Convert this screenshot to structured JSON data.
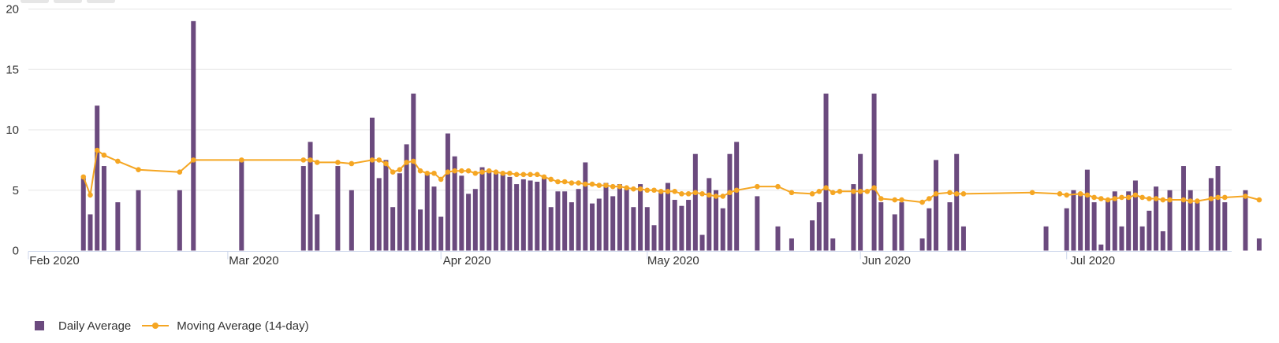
{
  "chart_data": {
    "type": "bar",
    "ylim": [
      0,
      20
    ],
    "yticks": [
      "0",
      "5",
      "10",
      "15",
      "20"
    ],
    "xticks": [
      {
        "label": "Feb 2020",
        "date": "2020-02-01"
      },
      {
        "label": "Mar 2020",
        "date": "2020-03-01"
      },
      {
        "label": "Apr 2020",
        "date": "2020-04-01"
      },
      {
        "label": "May 2020",
        "date": "2020-05-01"
      },
      {
        "label": "Jun 2020",
        "date": "2020-06-01"
      },
      {
        "label": "Jul 2020",
        "date": "2020-07-01"
      }
    ],
    "legend_position": "bottom-left",
    "grid": "horizontal",
    "series": [
      {
        "name": "Daily Average",
        "type": "bar",
        "color": "#6b4a7e",
        "points": [
          [
            "2020-02-09",
            6
          ],
          [
            "2020-02-10",
            3
          ],
          [
            "2020-02-11",
            12
          ],
          [
            "2020-02-12",
            7
          ],
          [
            "2020-02-14",
            4
          ],
          [
            "2020-02-17",
            5
          ],
          [
            "2020-02-23",
            5
          ],
          [
            "2020-02-25",
            19
          ],
          [
            "2020-03-03",
            7.5
          ],
          [
            "2020-03-12",
            7
          ],
          [
            "2020-03-13",
            9
          ],
          [
            "2020-03-14",
            3
          ],
          [
            "2020-03-17",
            7
          ],
          [
            "2020-03-19",
            5
          ],
          [
            "2020-03-22",
            11
          ],
          [
            "2020-03-23",
            6
          ],
          [
            "2020-03-24",
            7.5
          ],
          [
            "2020-03-25",
            3.6
          ],
          [
            "2020-03-26",
            6.4
          ],
          [
            "2020-03-27",
            8.8
          ],
          [
            "2020-03-28",
            13
          ],
          [
            "2020-03-29",
            3.4
          ],
          [
            "2020-03-30",
            6.4
          ],
          [
            "2020-03-31",
            5.3
          ],
          [
            "2020-04-01",
            2.8
          ],
          [
            "2020-04-02",
            9.7
          ],
          [
            "2020-04-03",
            7.8
          ],
          [
            "2020-04-04",
            6.2
          ],
          [
            "2020-04-05",
            4.7
          ],
          [
            "2020-04-06",
            5.1
          ],
          [
            "2020-04-07",
            6.9
          ],
          [
            "2020-04-08",
            6.6
          ],
          [
            "2020-04-09",
            6.4
          ],
          [
            "2020-04-10",
            6.3
          ],
          [
            "2020-04-11",
            6.1
          ],
          [
            "2020-04-12",
            5.5
          ],
          [
            "2020-04-13",
            5.9
          ],
          [
            "2020-04-14",
            5.8
          ],
          [
            "2020-04-15",
            5.7
          ],
          [
            "2020-04-16",
            6
          ],
          [
            "2020-04-17",
            3.6
          ],
          [
            "2020-04-18",
            4.9
          ],
          [
            "2020-04-19",
            4.9
          ],
          [
            "2020-04-20",
            4
          ],
          [
            "2020-04-21",
            5.1
          ],
          [
            "2020-04-22",
            7.3
          ],
          [
            "2020-04-23",
            3.9
          ],
          [
            "2020-04-24",
            4.3
          ],
          [
            "2020-04-25",
            5.6
          ],
          [
            "2020-04-26",
            4.5
          ],
          [
            "2020-04-27",
            5.5
          ],
          [
            "2020-04-28",
            5.1
          ],
          [
            "2020-04-29",
            3.6
          ],
          [
            "2020-04-30",
            5.5
          ],
          [
            "2020-05-01",
            3.6
          ],
          [
            "2020-05-02",
            2.1
          ],
          [
            "2020-05-03",
            4.8
          ],
          [
            "2020-05-04",
            5.6
          ],
          [
            "2020-05-05",
            4.2
          ],
          [
            "2020-05-06",
            3.7
          ],
          [
            "2020-05-07",
            4.2
          ],
          [
            "2020-05-08",
            8
          ],
          [
            "2020-05-09",
            1.3
          ],
          [
            "2020-05-10",
            6
          ],
          [
            "2020-05-11",
            5
          ],
          [
            "2020-05-12",
            3.5
          ],
          [
            "2020-05-13",
            8
          ],
          [
            "2020-05-14",
            9
          ],
          [
            "2020-05-17",
            4.5
          ],
          [
            "2020-05-20",
            2
          ],
          [
            "2020-05-22",
            1
          ],
          [
            "2020-05-25",
            2.5
          ],
          [
            "2020-05-26",
            4
          ],
          [
            "2020-05-27",
            13
          ],
          [
            "2020-05-28",
            1
          ],
          [
            "2020-05-31",
            5.5
          ],
          [
            "2020-06-01",
            8
          ],
          [
            "2020-06-03",
            13
          ],
          [
            "2020-06-04",
            4
          ],
          [
            "2020-06-06",
            3
          ],
          [
            "2020-06-07",
            4
          ],
          [
            "2020-06-10",
            1
          ],
          [
            "2020-06-11",
            3.5
          ],
          [
            "2020-06-12",
            7.5
          ],
          [
            "2020-06-14",
            4
          ],
          [
            "2020-06-15",
            8
          ],
          [
            "2020-06-16",
            2
          ],
          [
            "2020-06-28",
            2
          ],
          [
            "2020-07-01",
            3.5
          ],
          [
            "2020-07-02",
            5
          ],
          [
            "2020-07-03",
            4.8
          ],
          [
            "2020-07-04",
            6.7
          ],
          [
            "2020-07-05",
            4
          ],
          [
            "2020-07-06",
            0.5
          ],
          [
            "2020-07-07",
            4.2
          ],
          [
            "2020-07-08",
            4.9
          ],
          [
            "2020-07-09",
            2
          ],
          [
            "2020-07-10",
            4.9
          ],
          [
            "2020-07-11",
            5.8
          ],
          [
            "2020-07-12",
            2
          ],
          [
            "2020-07-13",
            3.3
          ],
          [
            "2020-07-14",
            5.3
          ],
          [
            "2020-07-15",
            1.6
          ],
          [
            "2020-07-16",
            5
          ],
          [
            "2020-07-18",
            7
          ],
          [
            "2020-07-19",
            5
          ],
          [
            "2020-07-20",
            4
          ],
          [
            "2020-07-22",
            6
          ],
          [
            "2020-07-23",
            7
          ],
          [
            "2020-07-24",
            4
          ],
          [
            "2020-07-27",
            5
          ],
          [
            "2020-07-29",
            1
          ]
        ]
      },
      {
        "name": "Moving Average (14-day)",
        "type": "line",
        "color": "#f5a623",
        "points": [
          [
            "2020-02-09",
            6.1
          ],
          [
            "2020-02-10",
            4.6
          ],
          [
            "2020-02-11",
            8.3
          ],
          [
            "2020-02-12",
            7.9
          ],
          [
            "2020-02-14",
            7.4
          ],
          [
            "2020-02-17",
            6.7
          ],
          [
            "2020-02-23",
            6.5
          ],
          [
            "2020-02-25",
            7.5
          ],
          [
            "2020-03-03",
            7.5
          ],
          [
            "2020-03-12",
            7.5
          ],
          [
            "2020-03-13",
            7.5
          ],
          [
            "2020-03-14",
            7.3
          ],
          [
            "2020-03-17",
            7.3
          ],
          [
            "2020-03-19",
            7.2
          ],
          [
            "2020-03-22",
            7.5
          ],
          [
            "2020-03-23",
            7.5
          ],
          [
            "2020-03-24",
            7.2
          ],
          [
            "2020-03-25",
            6.5
          ],
          [
            "2020-03-26",
            6.7
          ],
          [
            "2020-03-27",
            7.3
          ],
          [
            "2020-03-28",
            7.4
          ],
          [
            "2020-03-29",
            6.6
          ],
          [
            "2020-03-30",
            6.4
          ],
          [
            "2020-03-31",
            6.4
          ],
          [
            "2020-04-01",
            5.9
          ],
          [
            "2020-04-02",
            6.5
          ],
          [
            "2020-04-03",
            6.6
          ],
          [
            "2020-04-04",
            6.6
          ],
          [
            "2020-04-05",
            6.6
          ],
          [
            "2020-04-06",
            6.4
          ],
          [
            "2020-04-07",
            6.5
          ],
          [
            "2020-04-08",
            6.6
          ],
          [
            "2020-04-09",
            6.5
          ],
          [
            "2020-04-10",
            6.4
          ],
          [
            "2020-04-11",
            6.4
          ],
          [
            "2020-04-12",
            6.3
          ],
          [
            "2020-04-13",
            6.3
          ],
          [
            "2020-04-14",
            6.3
          ],
          [
            "2020-04-15",
            6.3
          ],
          [
            "2020-04-16",
            6.1
          ],
          [
            "2020-04-17",
            5.9
          ],
          [
            "2020-04-18",
            5.7
          ],
          [
            "2020-04-19",
            5.7
          ],
          [
            "2020-04-20",
            5.6
          ],
          [
            "2020-04-21",
            5.6
          ],
          [
            "2020-04-22",
            5.5
          ],
          [
            "2020-04-23",
            5.5
          ],
          [
            "2020-04-24",
            5.4
          ],
          [
            "2020-04-25",
            5.4
          ],
          [
            "2020-04-26",
            5.3
          ],
          [
            "2020-04-27",
            5.3
          ],
          [
            "2020-04-28",
            5.2
          ],
          [
            "2020-04-29",
            5.1
          ],
          [
            "2020-04-30",
            5.1
          ],
          [
            "2020-05-01",
            5
          ],
          [
            "2020-05-02",
            5
          ],
          [
            "2020-05-03",
            4.9
          ],
          [
            "2020-05-04",
            4.9
          ],
          [
            "2020-05-05",
            4.9
          ],
          [
            "2020-05-06",
            4.7
          ],
          [
            "2020-05-07",
            4.7
          ],
          [
            "2020-05-08",
            4.8
          ],
          [
            "2020-05-09",
            4.7
          ],
          [
            "2020-05-10",
            4.6
          ],
          [
            "2020-05-11",
            4.5
          ],
          [
            "2020-05-12",
            4.5
          ],
          [
            "2020-05-13",
            4.8
          ],
          [
            "2020-05-14",
            5
          ],
          [
            "2020-05-17",
            5.3
          ],
          [
            "2020-05-20",
            5.3
          ],
          [
            "2020-05-22",
            4.8
          ],
          [
            "2020-05-25",
            4.7
          ],
          [
            "2020-05-26",
            4.9
          ],
          [
            "2020-05-27",
            5.2
          ],
          [
            "2020-05-28",
            4.8
          ],
          [
            "2020-05-29",
            4.9
          ],
          [
            "2020-05-31",
            4.9
          ],
          [
            "2020-06-01",
            4.9
          ],
          [
            "2020-06-02",
            4.9
          ],
          [
            "2020-06-03",
            5.2
          ],
          [
            "2020-06-04",
            4.3
          ],
          [
            "2020-06-06",
            4.2
          ],
          [
            "2020-06-07",
            4.2
          ],
          [
            "2020-06-10",
            4
          ],
          [
            "2020-06-11",
            4.3
          ],
          [
            "2020-06-12",
            4.7
          ],
          [
            "2020-06-14",
            4.8
          ],
          [
            "2020-06-15",
            4.7
          ],
          [
            "2020-06-16",
            4.7
          ],
          [
            "2020-06-26",
            4.8
          ],
          [
            "2020-06-30",
            4.7
          ],
          [
            "2020-07-01",
            4.6
          ],
          [
            "2020-07-03",
            4.7
          ],
          [
            "2020-07-04",
            4.6
          ],
          [
            "2020-07-05",
            4.4
          ],
          [
            "2020-07-06",
            4.3
          ],
          [
            "2020-07-07",
            4.2
          ],
          [
            "2020-07-08",
            4.3
          ],
          [
            "2020-07-09",
            4.4
          ],
          [
            "2020-07-10",
            4.4
          ],
          [
            "2020-07-11",
            4.6
          ],
          [
            "2020-07-12",
            4.4
          ],
          [
            "2020-07-13",
            4.3
          ],
          [
            "2020-07-14",
            4.3
          ],
          [
            "2020-07-15",
            4.2
          ],
          [
            "2020-07-16",
            4.2
          ],
          [
            "2020-07-18",
            4.2
          ],
          [
            "2020-07-19",
            4.1
          ],
          [
            "2020-07-20",
            4.1
          ],
          [
            "2020-07-22",
            4.3
          ],
          [
            "2020-07-23",
            4.4
          ],
          [
            "2020-07-24",
            4.4
          ],
          [
            "2020-07-27",
            4.5
          ],
          [
            "2020-07-29",
            4.2
          ]
        ]
      }
    ]
  },
  "legend": {
    "items": [
      {
        "label": "Daily Average",
        "color": "#6b4a7e"
      },
      {
        "label": "Moving Average (14-day)",
        "color": "#f5a623"
      }
    ]
  }
}
